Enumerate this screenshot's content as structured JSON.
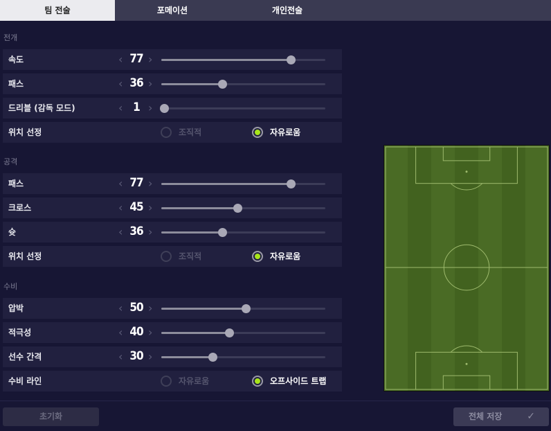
{
  "tabs": [
    {
      "label": "팀 전술",
      "active": true
    },
    {
      "label": "포메이션"
    },
    {
      "label": "개인전술"
    }
  ],
  "sections": [
    {
      "title": "전개",
      "rows": [
        {
          "type": "slider",
          "label": "속도",
          "value": 77
        },
        {
          "type": "slider",
          "label": "패스",
          "value": 36
        },
        {
          "type": "slider",
          "label": "드리블 (감독 모드)",
          "value": 1
        },
        {
          "type": "radio",
          "label": "위치 선정",
          "options": [
            "조직적",
            "자유로움"
          ],
          "selected": 1
        }
      ]
    },
    {
      "title": "공격",
      "rows": [
        {
          "type": "slider",
          "label": "패스",
          "value": 77
        },
        {
          "type": "slider",
          "label": "크로스",
          "value": 45
        },
        {
          "type": "slider",
          "label": "슛",
          "value": 36
        },
        {
          "type": "radio",
          "label": "위치 선정",
          "options": [
            "조직적",
            "자유로움"
          ],
          "selected": 1
        }
      ]
    },
    {
      "title": "수비",
      "rows": [
        {
          "type": "slider",
          "label": "압박",
          "value": 50
        },
        {
          "type": "slider",
          "label": "적극성",
          "value": 40
        },
        {
          "type": "slider",
          "label": "선수 간격",
          "value": 30
        },
        {
          "type": "radio",
          "label": "수비 라인",
          "options": [
            "자유로움",
            "오프사이드 트랩"
          ],
          "selected": 1
        }
      ]
    }
  ],
  "slider_range": [
    1,
    100
  ],
  "footer": {
    "reset_label": "초기화",
    "save_label": "전체 저장",
    "save_icon": "check-icon"
  },
  "colors": {
    "accent": "#a8e51b",
    "pitch": "#4a6b25"
  }
}
